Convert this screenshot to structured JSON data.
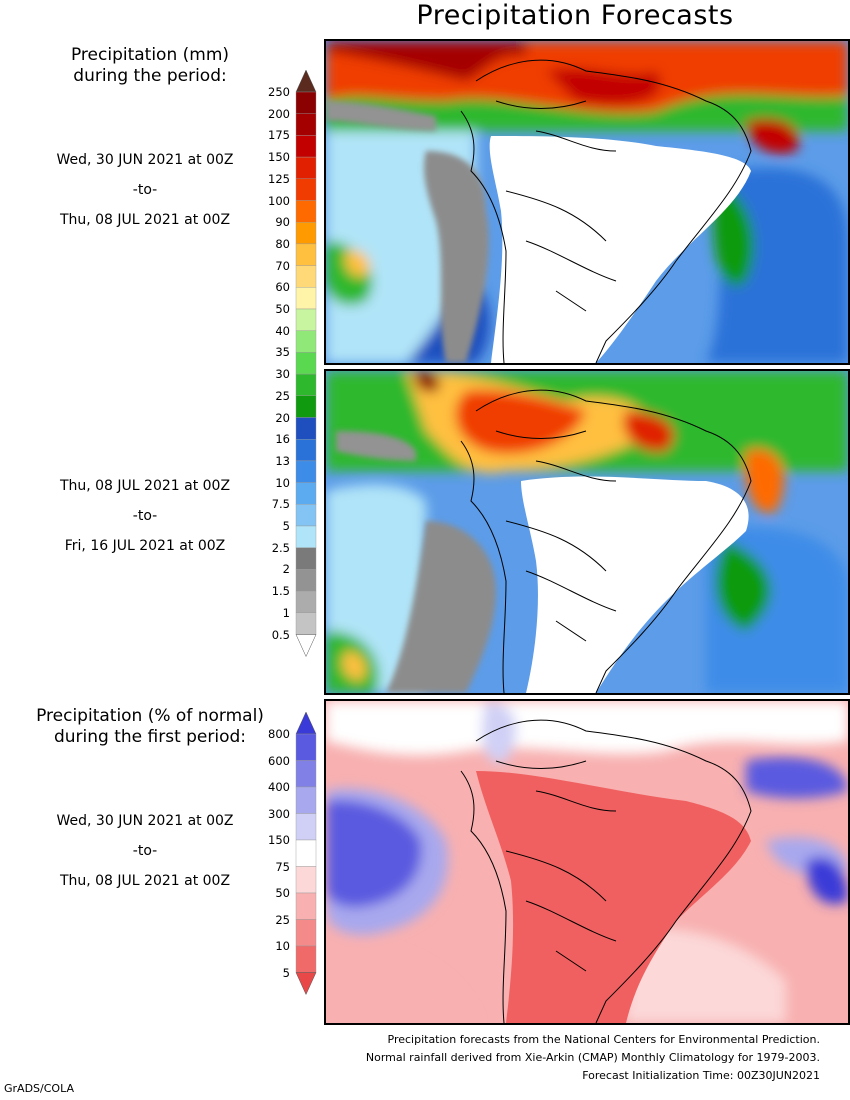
{
  "title": "Precipitation Forecasts",
  "mm_section": {
    "heading_line1": "Precipitation (mm)",
    "heading_line2": "during the period:",
    "periods": [
      {
        "start": "Wed, 30 JUN 2021 at 00Z",
        "sep": "-to-",
        "end": "Thu, 08 JUL 2021 at 00Z"
      },
      {
        "start": "Thu, 08 JUL 2021 at 00Z",
        "sep": "-to-",
        "end": "Fri, 16 JUL 2021 at 00Z"
      }
    ],
    "colorbar": {
      "levels": [
        "250",
        "200",
        "175",
        "150",
        "125",
        "100",
        "90",
        "80",
        "70",
        "60",
        "50",
        "40",
        "35",
        "30",
        "25",
        "20",
        "16",
        "13",
        "10",
        "7.5",
        "5",
        "2.5",
        "2",
        "1.5",
        "1",
        "0.5"
      ],
      "colors": [
        "#5a2b1e",
        "#8b0000",
        "#a50000",
        "#c20000",
        "#e02000",
        "#f03c00",
        "#ff6a00",
        "#ff9a00",
        "#ffc040",
        "#ffd978",
        "#fff4a8",
        "#c8f5a0",
        "#90e878",
        "#5ad850",
        "#2eb82e",
        "#109a10",
        "#1f4fbf",
        "#2a72d8",
        "#3c8ce8",
        "#5caaf0",
        "#84c4f4",
        "#b0e4f8",
        "#7a7a7a",
        "#939393",
        "#acacac",
        "#c4c4c4",
        "#ffffff"
      ]
    }
  },
  "pct_section": {
    "heading_line1": "Precipitation (% of normal)",
    "heading_line2": "during the first period:",
    "period": {
      "start": "Wed, 30 JUN 2021 at 00Z",
      "sep": "-to-",
      "end": "Thu, 08 JUL 2021 at 00Z"
    },
    "colorbar": {
      "levels": [
        "800",
        "600",
        "400",
        "300",
        "150",
        "75",
        "50",
        "25",
        "10",
        "5"
      ],
      "colors": [
        "#3a3ad8",
        "#5a5ae0",
        "#8080e6",
        "#a8a8ee",
        "#d0d0f6",
        "#ffffff",
        "#fcd8d8",
        "#f8b0b0",
        "#f48a8a",
        "#f06a6a",
        "#e84848"
      ]
    }
  },
  "footnotes": {
    "line1": "Precipitation forecasts from the National Centers for Environmental Prediction.",
    "line2": "Normal rainfall derived from Xie-Arkin (CMAP) Monthly Climatology for 1979-2003.",
    "line3": "Forecast Initialization Time: 00Z30JUN2021"
  },
  "credit": "GrADS/COLA"
}
